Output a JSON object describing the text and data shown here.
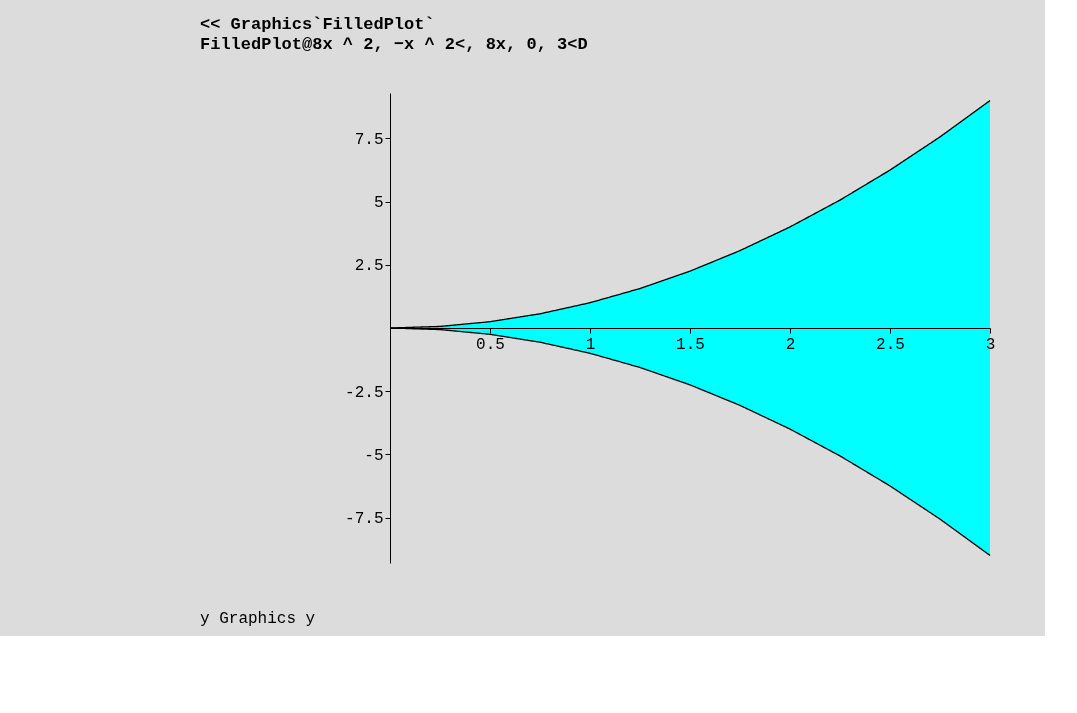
{
  "chart_data": {
    "type": "area",
    "title": "<< Graphics`FilledPlot`",
    "subtitle": "FilledPlot@8x ^ 2, −x ^ 2<, 8x, 0, 3<D",
    "annotations": [
      "y Graphics y"
    ],
    "x": [
      0,
      0.25,
      0.5,
      0.75,
      1,
      1.25,
      1.5,
      1.75,
      2,
      2.25,
      2.5,
      2.75,
      3
    ],
    "series": [
      {
        "color": "#00ffff",
        "values": [
          0,
          0.0625,
          0.25,
          0.5625,
          1,
          1.5625,
          2.25,
          3.0625,
          4,
          5.0625,
          6.25,
          7.5625,
          9
        ]
      },
      {
        "color": "#00ffff",
        "values": [
          0,
          -0.0625,
          -0.25,
          -0.5625,
          -1,
          -1.5625,
          -2.25,
          -3.0625,
          -4,
          -5.0625,
          -6.25,
          -7.5625,
          -9
        ]
      }
    ],
    "xlim": [
      0,
      3
    ],
    "xticks": [
      0.5,
      1,
      1.5,
      2,
      2.5,
      3
    ],
    "ylim": [
      -9.3,
      9.3
    ],
    "yticks": [
      -7.5,
      -5,
      -2.5,
      2.5,
      5,
      7.5
    ]
  }
}
